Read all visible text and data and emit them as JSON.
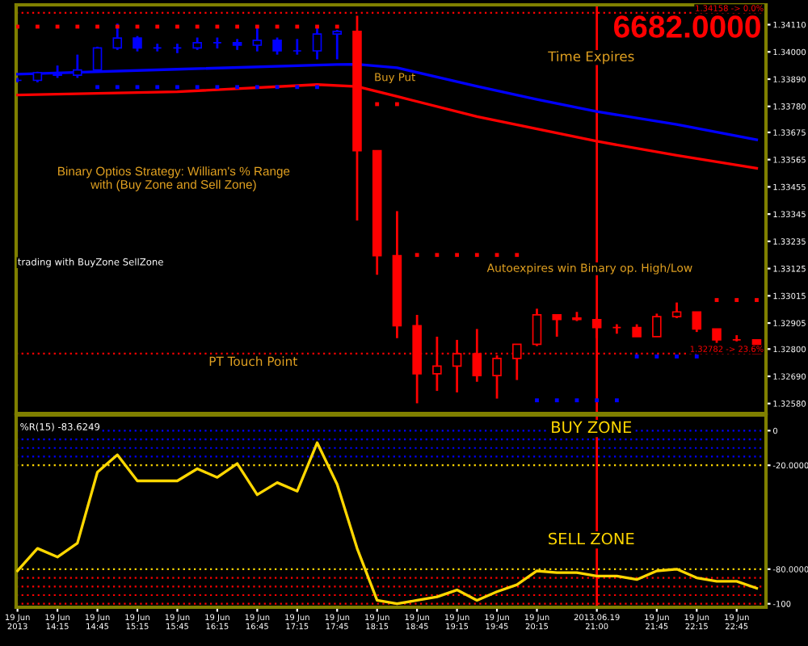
{
  "chart_data": [
    {
      "type": "candlestick",
      "ylim": [
        1.3254,
        1.3419
      ],
      "xlim": [
        "2013-06-19T13:44",
        "2013-06-19T23:07"
      ],
      "tick_labels": "y",
      "yticks": [
        {
          "value": 1.3411,
          "label": "1.34110"
        },
        {
          "value": 1.34,
          "label": "1.34000"
        },
        {
          "value": 1.3389,
          "label": "1.33890"
        },
        {
          "value": 1.3378,
          "label": "1.33780"
        },
        {
          "value": 1.33675,
          "label": "1.33675"
        },
        {
          "value": 1.33565,
          "label": "1.33565"
        },
        {
          "value": 1.33455,
          "label": "1.33455"
        },
        {
          "value": 1.33345,
          "label": "1.33345"
        },
        {
          "value": 1.33235,
          "label": "1.33235"
        },
        {
          "value": 1.33125,
          "label": "1.33125"
        },
        {
          "value": 1.33015,
          "label": "1.33015"
        },
        {
          "value": 1.32905,
          "label": "1.32905"
        },
        {
          "value": 1.328,
          "label": "1.32800"
        },
        {
          "value": 1.3269,
          "label": "1.32690"
        },
        {
          "value": 1.3258,
          "label": "1.32580"
        }
      ],
      "x": [
        "2013-06-19T13:45",
        "2013-06-19T14:00",
        "2013-06-19T14:15",
        "2013-06-19T14:30",
        "2013-06-19T14:45",
        "2013-06-19T15:00",
        "2013-06-19T15:15",
        "2013-06-19T15:30",
        "2013-06-19T15:45",
        "2013-06-19T16:00",
        "2013-06-19T16:15",
        "2013-06-19T16:30",
        "2013-06-19T16:45",
        "2013-06-19T17:00",
        "2013-06-19T17:15",
        "2013-06-19T17:30",
        "2013-06-19T17:45",
        "2013-06-19T18:00",
        "2013-06-19T18:15",
        "2013-06-19T18:30",
        "2013-06-19T18:45",
        "2013-06-19T19:00",
        "2013-06-19T19:15",
        "2013-06-19T19:30",
        "2013-06-19T19:45",
        "2013-06-19T20:00",
        "2013-06-19T20:15",
        "2013-06-19T20:30",
        "2013-06-19T20:45",
        "2013-06-19T21:00",
        "2013-06-19T21:15",
        "2013-06-19T21:30",
        "2013-06-19T21:45",
        "2013-06-19T22:00",
        "2013-06-19T22:15",
        "2013-06-19T22:30",
        "2013-06-19T22:45",
        "2013-06-19T23:00"
      ],
      "ohlc": [
        [
          1.33885,
          1.33895,
          1.33877,
          1.33885
        ],
        [
          1.33885,
          1.3392,
          1.33877,
          1.33916
        ],
        [
          1.33916,
          1.33945,
          1.33895,
          1.33906
        ],
        [
          1.33906,
          1.33989,
          1.33895,
          1.33927
        ],
        [
          1.33927,
          1.34021,
          1.33927,
          1.34016
        ],
        [
          1.34016,
          1.34114,
          1.34008,
          1.34056
        ],
        [
          1.34056,
          1.34064,
          1.34002,
          1.34016
        ],
        [
          1.34016,
          1.34033,
          1.34002,
          1.34016
        ],
        [
          1.34016,
          1.34033,
          1.33995,
          1.34016
        ],
        [
          1.34016,
          1.34058,
          1.34008,
          1.34037
        ],
        [
          1.34037,
          1.34058,
          1.34014,
          1.34037
        ],
        [
          1.34037,
          1.34052,
          1.34008,
          1.34027
        ],
        [
          1.34027,
          1.34096,
          1.34002,
          1.34047
        ],
        [
          1.34047,
          1.34058,
          1.33989,
          1.34004
        ],
        [
          1.34004,
          1.34052,
          1.33989,
          1.34004
        ],
        [
          1.34004,
          1.34096,
          1.3397,
          1.34072
        ],
        [
          1.34072,
          1.34089,
          1.3397,
          1.34083
        ],
        [
          1.34083,
          1.34146,
          1.33319,
          1.33601
        ],
        [
          1.33601,
          1.33601,
          1.331,
          1.33177
        ],
        [
          1.33177,
          1.33357,
          1.32844,
          1.32894
        ],
        [
          1.32894,
          1.32938,
          1.32581,
          1.327
        ],
        [
          1.327,
          1.3285,
          1.32631,
          1.32731
        ],
        [
          1.32731,
          1.32837,
          1.32625,
          1.32781
        ],
        [
          1.32781,
          1.32881,
          1.32668,
          1.32693
        ],
        [
          1.32693,
          1.32775,
          1.326,
          1.32762
        ],
        [
          1.32762,
          1.32819,
          1.32675,
          1.32819
        ],
        [
          1.32819,
          1.32963,
          1.32812,
          1.32938
        ],
        [
          1.32938,
          1.32938,
          1.3285,
          1.32919
        ],
        [
          1.32925,
          1.3295,
          1.32913,
          1.32919
        ],
        [
          1.32919,
          1.32925,
          1.32844,
          1.32887
        ],
        [
          1.32887,
          1.329,
          1.32862,
          1.32887
        ],
        [
          1.32887,
          1.329,
          1.3285,
          1.3285
        ],
        [
          1.3285,
          1.32943,
          1.3285,
          1.32931
        ],
        [
          1.32931,
          1.32988,
          1.32925,
          1.3295
        ],
        [
          1.3295,
          1.3295,
          1.32869,
          1.32881
        ],
        [
          1.32881,
          1.32881,
          1.32825,
          1.32837
        ],
        [
          1.32837,
          1.32856,
          1.32831,
          1.32837
        ],
        [
          1.32837,
          1.32837,
          1.32781,
          1.32781
        ]
      ],
      "colors": [
        "#0000ff",
        "#0000ff",
        "#0000ff",
        "#0000ff",
        "#0000ff",
        "#0000ff",
        "#0000ff",
        "#0000ff",
        "#0000ff",
        "#0000ff",
        "#0000ff",
        "#0000ff",
        "#0000ff",
        "#0000ff",
        "#0000ff",
        "#0000ff",
        "#0000ff",
        "#ff0000",
        "#ff0000",
        "#ff0000",
        "#ff0000",
        "#ff0000",
        "#ff0000",
        "#ff0000",
        "#ff0000",
        "#ff0000",
        "#ff0000",
        "#ff0000",
        "#ff0000",
        "#ff0000",
        "#ff0000",
        "#ff0000",
        "#ff0000",
        "#ff0000",
        "#ff0000",
        "#ff0000",
        "#ff0000",
        "#ff0000"
      ],
      "series": [
        {
          "type": "line",
          "color": "#0000ff",
          "x": [
            "2013-06-19T13:45",
            "2013-06-19T15:45",
            "2013-06-19T17:45",
            "2013-06-19T18:00",
            "2013-06-19T18:30",
            "2013-06-19T19:30",
            "2013-06-19T20:15",
            "2013-06-19T21:00",
            "2013-06-19T22:00",
            "2013-06-19T23:00"
          ],
          "values": [
            1.3391,
            1.3393,
            1.33949,
            1.3395,
            1.33936,
            1.33861,
            1.33808,
            1.33759,
            1.33707,
            1.33645
          ]
        },
        {
          "type": "line",
          "color": "#ff0000",
          "x": [
            "2013-06-19T13:45",
            "2013-06-19T15:45",
            "2013-06-19T17:30",
            "2013-06-19T18:00",
            "2013-06-19T18:30",
            "2013-06-19T19:30",
            "2013-06-19T20:15",
            "2013-06-19T21:00",
            "2013-06-19T22:00",
            "2013-06-19T23:00"
          ],
          "values": [
            1.33826,
            1.33839,
            1.33868,
            1.3386,
            1.3382,
            1.33739,
            1.33689,
            1.33639,
            1.33582,
            1.3353
          ]
        },
        {
          "type": "scatter",
          "color": "#ff0000",
          "marker": "square",
          "x": [
            "2013-06-19T13:45",
            "2013-06-19T14:00",
            "2013-06-19T14:15",
            "2013-06-19T14:30",
            "2013-06-19T14:45",
            "2013-06-19T15:00",
            "2013-06-19T15:15",
            "2013-06-19T15:30",
            "2013-06-19T15:45",
            "2013-06-19T16:00",
            "2013-06-19T16:15",
            "2013-06-19T16:30",
            "2013-06-19T16:45",
            "2013-06-19T17:00",
            "2013-06-19T17:15",
            "2013-06-19T17:30",
            "2013-06-19T17:45",
            "2013-06-19T18:15",
            "2013-06-19T18:30",
            "2013-06-19T18:45",
            "2013-06-19T19:00",
            "2013-06-19T19:15",
            "2013-06-19T19:30",
            "2013-06-19T19:45",
            "2013-06-19T20:00",
            "2013-06-19T22:30",
            "2013-06-19T22:45",
            "2013-06-19T23:00"
          ],
          "values": [
            1.34102,
            1.34102,
            1.34102,
            1.34102,
            1.34102,
            1.34102,
            1.34102,
            1.34102,
            1.34102,
            1.34102,
            1.34102,
            1.34102,
            1.34102,
            1.34102,
            1.34102,
            1.34102,
            1.34102,
            1.33789,
            1.33789,
            1.3318,
            1.3318,
            1.3318,
            1.3318,
            1.3318,
            1.3318,
            1.32998,
            1.32998,
            1.32998
          ]
        },
        {
          "type": "scatter",
          "color": "#0000ff",
          "marker": "square",
          "x": [
            "2013-06-19T14:45",
            "2013-06-19T15:00",
            "2013-06-19T15:15",
            "2013-06-19T15:30",
            "2013-06-19T15:45",
            "2013-06-19T16:00",
            "2013-06-19T16:15",
            "2013-06-19T16:30",
            "2013-06-19T16:45",
            "2013-06-19T17:00",
            "2013-06-19T17:15",
            "2013-06-19T17:30",
            "2013-06-19T20:15",
            "2013-06-19T20:30",
            "2013-06-19T20:45",
            "2013-06-19T21:00",
            "2013-06-19T21:15",
            "2013-06-19T21:30",
            "2013-06-19T21:45",
            "2013-06-19T22:00",
            "2013-06-19T22:15"
          ],
          "values": [
            1.33858,
            1.33858,
            1.33858,
            1.33858,
            1.33858,
            1.33858,
            1.33858,
            1.33858,
            1.33858,
            1.33858,
            1.33858,
            1.33858,
            1.32593,
            1.32593,
            1.32593,
            1.32593,
            1.32593,
            1.3277,
            1.3277,
            1.3277,
            1.3277
          ]
        }
      ],
      "ref_lines": [
        {
          "axis": "y",
          "value": 1.34158,
          "label": "1.34158 -> 0.0%",
          "color": "#ff0000",
          "line_style": "dotted"
        },
        {
          "axis": "y",
          "value": 1.32782,
          "label": "1.32782 -> 23.6%",
          "color": "#ff0000",
          "line_style": "dotted"
        },
        {
          "axis": "x",
          "value": "2013-06-19T21:00",
          "color": "#ff0000",
          "line_style": "solid"
        }
      ],
      "annotations": [
        "6682.0000",
        "Time Expires",
        "Buy Put",
        "Binary Optios Strategy: William's % Range\nwith (Buy Zone and Sell Zone)",
        "trading with BuyZone SellZone",
        "Autoexpires win Binary op. High/Low",
        "PT Touch Point"
      ]
    },
    {
      "type": "line",
      "ylim": [
        -102,
        9
      ],
      "xlim": [
        "2013-06-19T13:44",
        "2013-06-19T23:07"
      ],
      "yticks": [
        {
          "value": 0,
          "label": "0"
        },
        {
          "value": -20,
          "label": "-20.0000"
        },
        {
          "value": -80,
          "label": "-80.0000"
        },
        {
          "value": -100,
          "label": "-100"
        }
      ],
      "xticks": [
        {
          "value": "2013-06-19T13:45",
          "label": "19 Jun 2013"
        },
        {
          "value": "2013-06-19T14:15",
          "label": "19 Jun 14:15"
        },
        {
          "value": "2013-06-19T14:45",
          "label": "19 Jun 14:45"
        },
        {
          "value": "2013-06-19T15:15",
          "label": "19 Jun 15:15"
        },
        {
          "value": "2013-06-19T15:45",
          "label": "19 Jun 15:45"
        },
        {
          "value": "2013-06-19T16:15",
          "label": "19 Jun 16:15"
        },
        {
          "value": "2013-06-19T16:45",
          "label": "19 Jun 16:45"
        },
        {
          "value": "2013-06-19T17:15",
          "label": "19 Jun 17:15"
        },
        {
          "value": "2013-06-19T17:45",
          "label": "19 Jun 17:45"
        },
        {
          "value": "2013-06-19T18:15",
          "label": "19 Jun 18:15"
        },
        {
          "value": "2013-06-19T18:45",
          "label": "19 Jun 18:45"
        },
        {
          "value": "2013-06-19T19:15",
          "label": "19 Jun 19:15"
        },
        {
          "value": "2013-06-19T19:45",
          "label": "19 Jun 19:45"
        },
        {
          "value": "2013-06-19T20:15",
          "label": "19 Jun 20:15"
        },
        {
          "value": "2013-06-19T21:00",
          "label": "2013.06.19 21:00"
        },
        {
          "value": "2013-06-19T21:45",
          "label": "19 Jun 21:45"
        },
        {
          "value": "2013-06-19T22:15",
          "label": "19 Jun 22:15"
        },
        {
          "value": "2013-06-19T22:45",
          "label": "19 Jun 22:45"
        }
      ],
      "x": [
        "2013-06-19T13:45",
        "2013-06-19T14:00",
        "2013-06-19T14:15",
        "2013-06-19T14:30",
        "2013-06-19T14:45",
        "2013-06-19T15:00",
        "2013-06-19T15:15",
        "2013-06-19T15:30",
        "2013-06-19T15:45",
        "2013-06-19T16:00",
        "2013-06-19T16:15",
        "2013-06-19T16:30",
        "2013-06-19T16:45",
        "2013-06-19T17:00",
        "2013-06-19T17:15",
        "2013-06-19T17:30",
        "2013-06-19T17:45",
        "2013-06-19T18:00",
        "2013-06-19T18:15",
        "2013-06-19T18:30",
        "2013-06-19T18:45",
        "2013-06-19T19:00",
        "2013-06-19T19:15",
        "2013-06-19T19:30",
        "2013-06-19T19:45",
        "2013-06-19T20:00",
        "2013-06-19T20:15",
        "2013-06-19T20:30",
        "2013-06-19T20:45",
        "2013-06-19T21:00",
        "2013-06-19T21:15",
        "2013-06-19T21:30",
        "2013-06-19T21:45",
        "2013-06-19T22:00",
        "2013-06-19T22:15",
        "2013-06-19T22:30",
        "2013-06-19T22:45",
        "2013-06-19T23:00"
      ],
      "series": [
        {
          "color": "#ffd700",
          "values": [
            -81,
            -68,
            -73,
            -65,
            -24,
            -14,
            -29,
            -29,
            -29,
            -22,
            -27,
            -19,
            -37,
            -30,
            -35,
            -7,
            -31,
            -68,
            -98,
            -100,
            -98,
            -96,
            -92,
            -98,
            -93,
            -89,
            -81,
            -82,
            -82,
            -84,
            -84,
            -86,
            -81,
            -80,
            -85,
            -87,
            -87,
            -91
          ]
        }
      ],
      "ref_lines": [
        {
          "axis": "y",
          "value": 0,
          "color": "#0000ff",
          "line_style": "dotted"
        },
        {
          "axis": "y",
          "value": -5,
          "color": "#0000ff",
          "line_style": "dotted"
        },
        {
          "axis": "y",
          "value": -10,
          "color": "#0000ff",
          "line_style": "dotted"
        },
        {
          "axis": "y",
          "value": -15,
          "color": "#0000ff",
          "line_style": "dotted"
        },
        {
          "axis": "y",
          "value": -20,
          "color": "#ffd700",
          "line_style": "dotted"
        },
        {
          "axis": "y",
          "value": -80,
          "color": "#ffd700",
          "line_style": "dotted"
        },
        {
          "axis": "y",
          "value": -85,
          "color": "#ff0000",
          "line_style": "dotted"
        },
        {
          "axis": "y",
          "value": -90,
          "color": "#ff0000",
          "line_style": "dotted"
        },
        {
          "axis": "y",
          "value": -95,
          "color": "#ff0000",
          "line_style": "dotted"
        },
        {
          "axis": "y",
          "value": -100,
          "color": "#ff0000",
          "line_style": "dotted"
        },
        {
          "axis": "x",
          "value": "2013-06-19T21:00",
          "color": "#ff0000",
          "line_style": "solid"
        }
      ],
      "annotations": [
        "%R(15) -83.6249",
        "BUY ZONE",
        "SELL ZONE"
      ]
    }
  ]
}
